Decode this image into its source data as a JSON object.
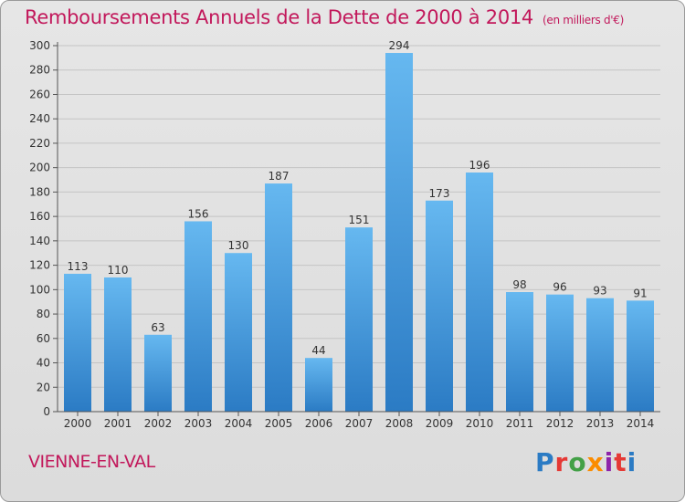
{
  "header": {
    "title": "Remboursements Annuels de la Dette de 2000 à 2014",
    "unit": "(en milliers d'€)"
  },
  "footer": {
    "commune": "VIENNE-EN-VAL",
    "logo_text": "Proxiti"
  },
  "colors": {
    "accent": "#c2185b",
    "bar_top": "#66b8f0",
    "bar_bottom": "#2b7bc4"
  },
  "chart_data": {
    "type": "bar",
    "title": "Remboursements Annuels de la Dette de 2000 à 2014",
    "xlabel": "",
    "ylabel": "",
    "categories": [
      "2000",
      "2001",
      "2002",
      "2003",
      "2004",
      "2005",
      "2006",
      "2007",
      "2008",
      "2009",
      "2010",
      "2011",
      "2012",
      "2013",
      "2014"
    ],
    "values": [
      113,
      110,
      63,
      156,
      130,
      187,
      44,
      151,
      294,
      173,
      196,
      98,
      96,
      93,
      91
    ],
    "ylim": [
      0,
      300
    ],
    "yticks": [
      0,
      20,
      40,
      60,
      80,
      100,
      120,
      140,
      160,
      180,
      200,
      220,
      240,
      260,
      280,
      300
    ],
    "grid": true,
    "data_labels": true
  }
}
